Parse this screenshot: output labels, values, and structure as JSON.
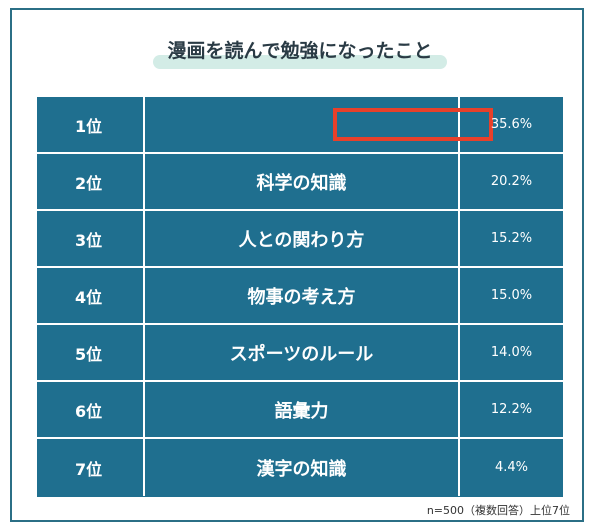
{
  "header": {
    "title": "漫画を読んで勉強になったこと"
  },
  "table": {
    "rows": [
      {
        "rank": "1位",
        "percent": "35.6%"
      },
      {
        "rank": "2位",
        "item": "科学の知識",
        "percent": "20.2%"
      },
      {
        "rank": "3位",
        "item": "人との関わり方",
        "percent": "15.2%"
      },
      {
        "rank": "4位",
        "item": "物事の考え方",
        "percent": "15.0%"
      },
      {
        "rank": "5位",
        "item": "スポーツのルール",
        "percent": "14.0%"
      },
      {
        "rank": "6位",
        "item": "語彙力",
        "percent": "12.2%"
      },
      {
        "rank": "7位",
        "item": "漢字の知識",
        "percent": "4.4%"
      }
    ]
  },
  "footer": {
    "note": "n=500（複数回答）上位7位"
  }
}
